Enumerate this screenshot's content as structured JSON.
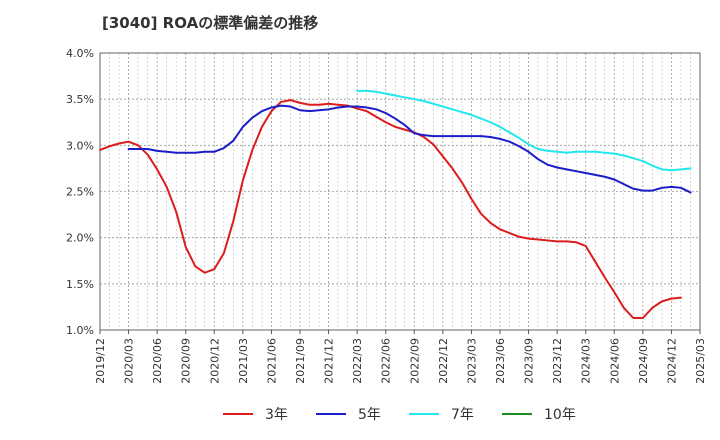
{
  "chart_data": {
    "type": "line",
    "title": "[3040]  ROAの標準偏差の推移",
    "xlabel": "",
    "ylabel": "",
    "ylim": [
      1.0,
      4.0
    ],
    "y_ticks": [
      "1.0%",
      "1.5%",
      "2.0%",
      "2.5%",
      "3.0%",
      "3.5%",
      "4.0%"
    ],
    "x_ticks": [
      "2019/12",
      "2020/03",
      "2020/06",
      "2020/09",
      "2020/12",
      "2021/03",
      "2021/06",
      "2021/09",
      "2021/12",
      "2022/03",
      "2022/06",
      "2022/09",
      "2022/12",
      "2023/03",
      "2023/06",
      "2023/09",
      "2023/12",
      "2024/03",
      "2024/06",
      "2024/09",
      "2024/12",
      "2025/03"
    ],
    "x_start": "2019-12",
    "x_end": "2025-03",
    "grid": true,
    "legend_position": "bottom",
    "series": [
      {
        "name": "3年",
        "color": "#dd1c1c",
        "points": [
          [
            "2019-12",
            2.95
          ],
          [
            "2020-01",
            2.99
          ],
          [
            "2020-02",
            3.02
          ],
          [
            "2020-03",
            3.04
          ],
          [
            "2020-04",
            3.0
          ],
          [
            "2020-05",
            2.9
          ],
          [
            "2020-06",
            2.74
          ],
          [
            "2020-07",
            2.55
          ],
          [
            "2020-08",
            2.28
          ],
          [
            "2020-09",
            1.9
          ],
          [
            "2020-10",
            1.69
          ],
          [
            "2020-11",
            1.62
          ],
          [
            "2020-12",
            1.66
          ],
          [
            "2021-01",
            1.83
          ],
          [
            "2021-02",
            2.18
          ],
          [
            "2021-03",
            2.62
          ],
          [
            "2021-04",
            2.95
          ],
          [
            "2021-05",
            3.2
          ],
          [
            "2021-06",
            3.37
          ],
          [
            "2021-07",
            3.47
          ],
          [
            "2021-08",
            3.49
          ],
          [
            "2021-09",
            3.46
          ],
          [
            "2021-10",
            3.44
          ],
          [
            "2021-11",
            3.44
          ],
          [
            "2021-12",
            3.45
          ],
          [
            "2022-01",
            3.44
          ],
          [
            "2022-02",
            3.43
          ],
          [
            "2022-03",
            3.4
          ],
          [
            "2022-04",
            3.37
          ],
          [
            "2022-05",
            3.31
          ],
          [
            "2022-06",
            3.25
          ],
          [
            "2022-07",
            3.2
          ],
          [
            "2022-08",
            3.17
          ],
          [
            "2022-09",
            3.14
          ],
          [
            "2022-10",
            3.09
          ],
          [
            "2022-11",
            3.01
          ],
          [
            "2022-12",
            2.88
          ],
          [
            "2023-01",
            2.75
          ],
          [
            "2023-02",
            2.6
          ],
          [
            "2023-03",
            2.42
          ],
          [
            "2023-04",
            2.26
          ],
          [
            "2023-05",
            2.16
          ],
          [
            "2023-06",
            2.09
          ],
          [
            "2023-07",
            2.05
          ],
          [
            "2023-08",
            2.01
          ],
          [
            "2023-09",
            1.99
          ],
          [
            "2023-10",
            1.98
          ],
          [
            "2023-11",
            1.97
          ],
          [
            "2023-12",
            1.96
          ],
          [
            "2024-01",
            1.96
          ],
          [
            "2024-02",
            1.95
          ],
          [
            "2024-03",
            1.91
          ],
          [
            "2024-04",
            1.74
          ],
          [
            "2024-05",
            1.57
          ],
          [
            "2024-06",
            1.41
          ],
          [
            "2024-07",
            1.24
          ],
          [
            "2024-08",
            1.13
          ],
          [
            "2024-09",
            1.13
          ],
          [
            "2024-10",
            1.24
          ],
          [
            "2024-11",
            1.31
          ],
          [
            "2024-12",
            1.34
          ],
          [
            "2025-01",
            1.35
          ]
        ]
      },
      {
        "name": "5年",
        "color": "#1c1cc8",
        "points": [
          [
            "2020-03",
            2.96
          ],
          [
            "2020-04",
            2.96
          ],
          [
            "2020-05",
            2.96
          ],
          [
            "2020-06",
            2.94
          ],
          [
            "2020-07",
            2.93
          ],
          [
            "2020-08",
            2.92
          ],
          [
            "2020-09",
            2.92
          ],
          [
            "2020-10",
            2.92
          ],
          [
            "2020-11",
            2.93
          ],
          [
            "2020-12",
            2.93
          ],
          [
            "2021-01",
            2.97
          ],
          [
            "2021-02",
            3.05
          ],
          [
            "2021-03",
            3.2
          ],
          [
            "2021-04",
            3.3
          ],
          [
            "2021-05",
            3.37
          ],
          [
            "2021-06",
            3.41
          ],
          [
            "2021-07",
            3.43
          ],
          [
            "2021-08",
            3.42
          ],
          [
            "2021-09",
            3.38
          ],
          [
            "2021-10",
            3.37
          ],
          [
            "2021-11",
            3.38
          ],
          [
            "2021-12",
            3.39
          ],
          [
            "2022-01",
            3.41
          ],
          [
            "2022-02",
            3.42
          ],
          [
            "2022-03",
            3.42
          ],
          [
            "2022-04",
            3.41
          ],
          [
            "2022-05",
            3.39
          ],
          [
            "2022-06",
            3.35
          ],
          [
            "2022-07",
            3.29
          ],
          [
            "2022-08",
            3.22
          ],
          [
            "2022-09",
            3.13
          ],
          [
            "2022-10",
            3.11
          ],
          [
            "2022-11",
            3.1
          ],
          [
            "2022-12",
            3.1
          ],
          [
            "2023-01",
            3.1
          ],
          [
            "2023-02",
            3.1
          ],
          [
            "2023-03",
            3.1
          ],
          [
            "2023-04",
            3.1
          ],
          [
            "2023-05",
            3.09
          ],
          [
            "2023-06",
            3.07
          ],
          [
            "2023-07",
            3.04
          ],
          [
            "2023-08",
            2.99
          ],
          [
            "2023-09",
            2.93
          ],
          [
            "2023-10",
            2.85
          ],
          [
            "2023-11",
            2.79
          ],
          [
            "2023-12",
            2.76
          ],
          [
            "2024-01",
            2.74
          ],
          [
            "2024-02",
            2.72
          ],
          [
            "2024-03",
            2.7
          ],
          [
            "2024-04",
            2.68
          ],
          [
            "2024-05",
            2.66
          ],
          [
            "2024-06",
            2.63
          ],
          [
            "2024-07",
            2.58
          ],
          [
            "2024-08",
            2.53
          ],
          [
            "2024-09",
            2.51
          ],
          [
            "2024-10",
            2.51
          ],
          [
            "2024-11",
            2.54
          ],
          [
            "2024-12",
            2.55
          ],
          [
            "2025-01",
            2.54
          ],
          [
            "2025-02",
            2.49
          ]
        ]
      },
      {
        "name": "7年",
        "color": "#22e8ee",
        "points": [
          [
            "2022-03",
            3.59
          ],
          [
            "2022-04",
            3.59
          ],
          [
            "2022-05",
            3.58
          ],
          [
            "2022-06",
            3.56
          ],
          [
            "2022-07",
            3.54
          ],
          [
            "2022-08",
            3.52
          ],
          [
            "2022-09",
            3.5
          ],
          [
            "2022-10",
            3.48
          ],
          [
            "2022-11",
            3.45
          ],
          [
            "2022-12",
            3.42
          ],
          [
            "2023-01",
            3.39
          ],
          [
            "2023-02",
            3.36
          ],
          [
            "2023-03",
            3.33
          ],
          [
            "2023-04",
            3.29
          ],
          [
            "2023-05",
            3.25
          ],
          [
            "2023-06",
            3.2
          ],
          [
            "2023-07",
            3.14
          ],
          [
            "2023-08",
            3.08
          ],
          [
            "2023-09",
            3.01
          ],
          [
            "2023-10",
            2.96
          ],
          [
            "2023-11",
            2.94
          ],
          [
            "2023-12",
            2.93
          ],
          [
            "2024-01",
            2.92
          ],
          [
            "2024-02",
            2.93
          ],
          [
            "2024-03",
            2.93
          ],
          [
            "2024-04",
            2.93
          ],
          [
            "2024-05",
            2.92
          ],
          [
            "2024-06",
            2.91
          ],
          [
            "2024-07",
            2.89
          ],
          [
            "2024-08",
            2.86
          ],
          [
            "2024-09",
            2.83
          ],
          [
            "2024-10",
            2.78
          ],
          [
            "2024-11",
            2.74
          ],
          [
            "2024-12",
            2.73
          ],
          [
            "2025-01",
            2.74
          ],
          [
            "2025-02",
            2.75
          ]
        ]
      },
      {
        "name": "10年",
        "color": "#1e8c1e",
        "points": []
      }
    ]
  }
}
